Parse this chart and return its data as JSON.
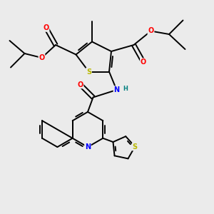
{
  "bg_color": "#ebebeb",
  "atom_colors": {
    "S": "#b8b800",
    "O": "#ff0000",
    "N": "#0000ff",
    "C": "#000000",
    "H": "#008080"
  },
  "bond_color": "#000000",
  "bond_width": 1.4
}
